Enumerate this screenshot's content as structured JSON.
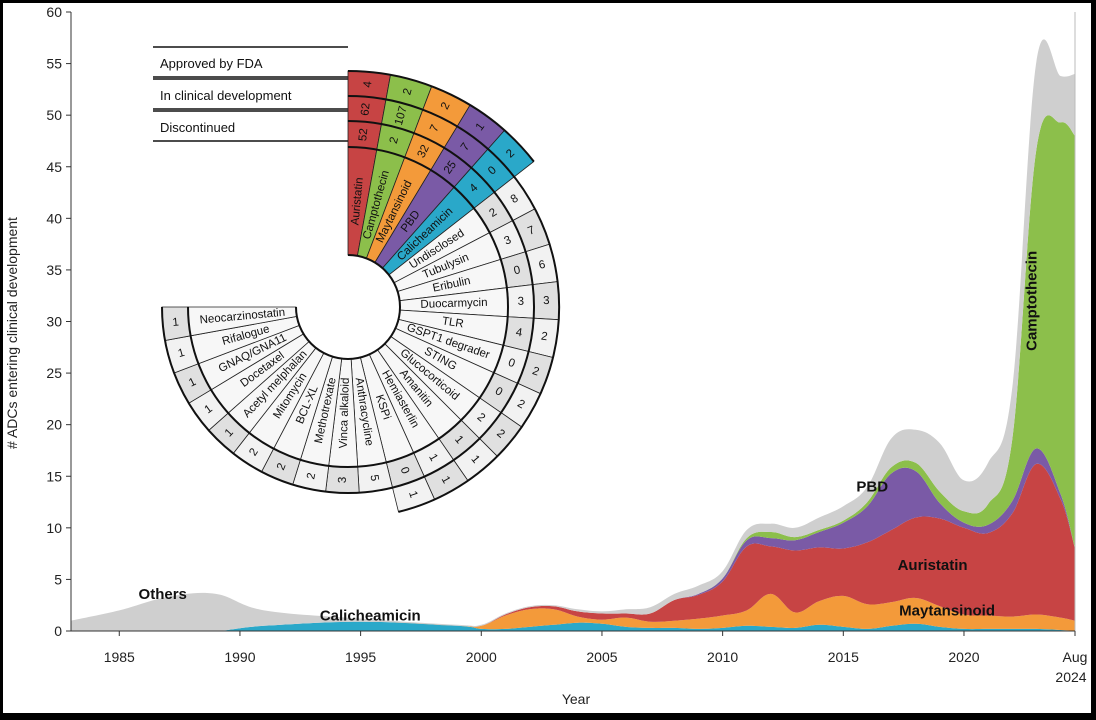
{
  "chart_data": {
    "type": "area",
    "stacked": true,
    "xlabel": "Year",
    "ylabel": "# ADCs entering clinical development",
    "xlim": [
      1983,
      2024.6
    ],
    "ylim": [
      0,
      60
    ],
    "x_ticks": [
      {
        "value": 1985,
        "label": "1985"
      },
      {
        "value": 1990,
        "label": "1990"
      },
      {
        "value": 1995,
        "label": "1995"
      },
      {
        "value": 2000,
        "label": "2000"
      },
      {
        "value": 2005,
        "label": "2005"
      },
      {
        "value": 2010,
        "label": "2010"
      },
      {
        "value": 2015,
        "label": "2015"
      },
      {
        "value": 2020,
        "label": "2020"
      },
      {
        "value": 2024.6,
        "label": "Aug",
        "label2": "2024"
      }
    ],
    "y_ticks": [
      0,
      5,
      10,
      15,
      20,
      25,
      30,
      35,
      40,
      45,
      50,
      55,
      60
    ],
    "x": [
      1983,
      1985,
      1987,
      1989,
      1991,
      1995,
      1999,
      2000,
      2001,
      2002,
      2003,
      2004,
      2005,
      2006,
      2007,
      2008,
      2009,
      2010,
      2011,
      2012,
      2013,
      2014,
      2015,
      2016,
      2017,
      2018,
      2019,
      2020,
      2021,
      2022,
      2023,
      2024,
      2024.6
    ],
    "series": [
      {
        "name": "Calicheamicin",
        "color": "#2aa8c9",
        "values": [
          0,
          0,
          0,
          0,
          0.5,
          0.9,
          0.5,
          0.2,
          0.2,
          0.4,
          0.6,
          0.8,
          0.7,
          0.4,
          0.3,
          0.3,
          0.2,
          0.3,
          0.5,
          0.4,
          0.3,
          0.6,
          0.4,
          0.2,
          0.5,
          0.7,
          0.4,
          0.2,
          0.2,
          0.2,
          0.2,
          0.1,
          0
        ]
      },
      {
        "name": "Maytansinoid",
        "color": "#f39a3a",
        "values": [
          0,
          0,
          0,
          0,
          0,
          0,
          0,
          0.3,
          1.3,
          1.7,
          1.5,
          0.6,
          0.4,
          0.9,
          0.6,
          0.7,
          1.0,
          1.2,
          1.5,
          3.2,
          1.5,
          2.3,
          3.0,
          2.4,
          2.3,
          2.5,
          2.0,
          1.4,
          1.3,
          1.2,
          1.4,
          1.2,
          1.0
        ]
      },
      {
        "name": "Auristatin",
        "color": "#c74444",
        "values": [
          0,
          0,
          0,
          0,
          0,
          0,
          0,
          0,
          0.1,
          0.2,
          0.3,
          0.5,
          0.6,
          0.4,
          0.8,
          2.0,
          2.3,
          3.3,
          6.2,
          4.6,
          6.0,
          5.2,
          4.6,
          6.0,
          7.0,
          7.8,
          8.5,
          8.4,
          8.0,
          10.0,
          14.6,
          11.5,
          7.0
        ]
      },
      {
        "name": "PBD",
        "color": "#7a5aa6",
        "values": [
          0,
          0,
          0,
          0,
          0,
          0,
          0,
          0,
          0,
          0,
          0,
          0,
          0,
          0,
          0,
          0,
          0.1,
          0.3,
          0.6,
          0.8,
          1.0,
          1.5,
          2.5,
          3.5,
          5.5,
          4.5,
          1.5,
          0.5,
          0.8,
          1.2,
          1.5,
          0.5,
          0
        ]
      },
      {
        "name": "Camptothecin",
        "color": "#8cbf4b",
        "values": [
          0,
          0,
          0,
          0,
          0,
          0,
          0,
          0,
          0,
          0,
          0,
          0,
          0,
          0,
          0,
          0,
          0,
          0,
          0.2,
          0.6,
          0.3,
          0.2,
          0.2,
          0.4,
          0.6,
          0.8,
          1.1,
          1.1,
          2.0,
          6.0,
          29.0,
          36.0,
          40.0
        ]
      },
      {
        "name": "Others",
        "color": "#cfcfcf",
        "values": [
          1.0,
          2.0,
          3.3,
          3.6,
          1.5,
          0.3,
          0.1,
          0.1,
          0.1,
          0.1,
          0.1,
          0.2,
          0.2,
          0.4,
          0.6,
          0.6,
          0.8,
          0.7,
          0.8,
          0.8,
          0.9,
          1.2,
          1.4,
          1.5,
          2.8,
          3.2,
          4.7,
          3.0,
          4.0,
          5.0,
          8.5,
          4.5,
          6.0
        ]
      }
    ],
    "series_labels": [
      {
        "text": "Others",
        "x": 1986.8,
        "y": 3.1
      },
      {
        "text": "Calicheamicin",
        "x": 1995.4,
        "y": 1.0
      },
      {
        "text": "Maytansinoid",
        "x": 2019.3,
        "y": 1.5
      },
      {
        "text": "Auristatin",
        "x": 2018.7,
        "y": 5.9
      },
      {
        "text": "PBD",
        "x": 2016.2,
        "y": 13.5
      },
      {
        "text": "Camptothecin",
        "x": 2023,
        "y": 32,
        "rotate": true
      }
    ],
    "wheel": {
      "rows": [
        {
          "label": "Approved by FDA"
        },
        {
          "label": "In clinical development"
        },
        {
          "label": "Discontinued"
        }
      ],
      "payloads": [
        {
          "name": "Auristatin",
          "color": "#c74444",
          "discontinued": "52",
          "clinical": "62",
          "approved": "4"
        },
        {
          "name": "Camptothecin",
          "color": "#8cbf4b",
          "discontinued": "2",
          "clinical": "107",
          "approved": "2"
        },
        {
          "name": "Maytansinoid",
          "color": "#f39a3a",
          "discontinued": "32",
          "clinical": "7",
          "approved": "2"
        },
        {
          "name": "PBD",
          "color": "#7a5aa6",
          "discontinued": "25",
          "clinical": "7",
          "approved": "1"
        },
        {
          "name": "Calicheamicin",
          "color": "#2aa8c9",
          "discontinued": "4",
          "clinical": "0",
          "approved": "2"
        },
        {
          "name": "Undisclosed",
          "color": "",
          "discontinued": "2",
          "clinical": "8"
        },
        {
          "name": "Tubulysin",
          "color": "",
          "discontinued": "3",
          "clinical": "7"
        },
        {
          "name": "Eribulin",
          "color": "",
          "discontinued": "0",
          "clinical": "6"
        },
        {
          "name": "Duocarmycin",
          "color": "",
          "discontinued": "3",
          "clinical": "3"
        },
        {
          "name": "TLR",
          "color": "",
          "discontinued": "4",
          "clinical": "2"
        },
        {
          "name": "GSPT1 degrader",
          "color": "",
          "discontinued": "0",
          "clinical": "2"
        },
        {
          "name": "STING",
          "color": "",
          "discontinued": "0",
          "clinical": "2"
        },
        {
          "name": "Glucocorticoid",
          "color": "",
          "discontinued": "2",
          "clinical": "2"
        },
        {
          "name": "Amanitin",
          "color": "",
          "discontinued": "1",
          "clinical": "1"
        },
        {
          "name": "Hemiasterlin",
          "color": "",
          "discontinued": "1",
          "clinical": "1"
        },
        {
          "name": "KSPi",
          "color": "",
          "discontinued": "0",
          "clinical": "1"
        },
        {
          "name": "Anthracycline",
          "color": "",
          "discontinued": "5",
          "clinical": ""
        },
        {
          "name": "Vinca alkaloid",
          "color": "",
          "discontinued": "3",
          "clinical": ""
        },
        {
          "name": "Methotrexate",
          "color": "",
          "discontinued": "2",
          "clinical": ""
        },
        {
          "name": "BCL-XL",
          "color": "",
          "discontinued": "2",
          "clinical": ""
        },
        {
          "name": "Mitomycin",
          "color": "",
          "discontinued": "2",
          "clinical": ""
        },
        {
          "name": "Acetyl melphalan",
          "color": "",
          "discontinued": "1",
          "clinical": ""
        },
        {
          "name": "Docetaxel",
          "color": "",
          "discontinued": "1",
          "clinical": ""
        },
        {
          "name": "GNAQ/GNA11",
          "color": "",
          "discontinued": "1",
          "clinical": ""
        },
        {
          "name": "Rifalogue",
          "color": "",
          "discontinued": "1",
          "clinical": ""
        },
        {
          "name": "Neocarzinostatin",
          "color": "",
          "discontinued": "1",
          "clinical": ""
        }
      ]
    }
  }
}
